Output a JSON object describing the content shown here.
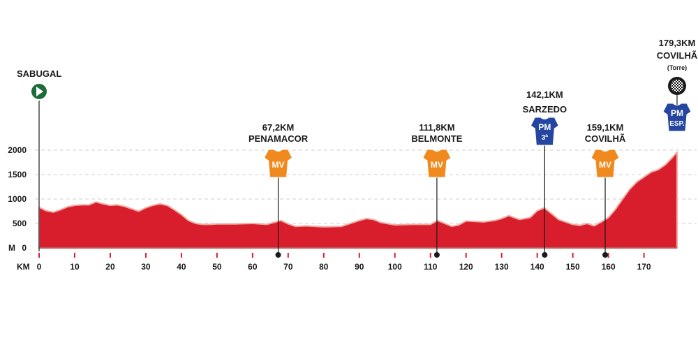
{
  "colors": {
    "profile_fill": "#d81e2c",
    "profile_edge": "#f0a8a0",
    "grid": "#cfcfcf",
    "tick_red": "#d81e2c",
    "start_green": "#1e6b3a",
    "mv_orange": "#f08a1e",
    "pm_blue": "#2546a0"
  },
  "chart_data": {
    "type": "area",
    "ylabel_unit": "M",
    "xlabel_unit": "KM",
    "ylim": [
      0,
      2000
    ],
    "xlim": [
      0,
      179.3
    ],
    "yticks": [
      0,
      500,
      1000,
      1500,
      2000
    ],
    "yticks_labels": [
      "0",
      "500",
      "1000",
      "1500",
      "2000"
    ],
    "xticks": [
      0,
      10,
      20,
      30,
      40,
      50,
      60,
      70,
      80,
      90,
      100,
      110,
      120,
      130,
      140,
      150,
      160,
      170
    ],
    "grid": "horizontal dashed",
    "series": [
      {
        "x": [
          0,
          2,
          4,
          6,
          8,
          10,
          12,
          14,
          16,
          18,
          20,
          22,
          24,
          26,
          28,
          30,
          32,
          34,
          36,
          38,
          40,
          42,
          44,
          46,
          48,
          50,
          55,
          60,
          64,
          66,
          68,
          70,
          72,
          75,
          80,
          85,
          90,
          92,
          94,
          96,
          100,
          105,
          110,
          112,
          114,
          116,
          118,
          120,
          125,
          128,
          130,
          132,
          135,
          138,
          140,
          142,
          144,
          146,
          148,
          150,
          152,
          154,
          156,
          158,
          160,
          162,
          164,
          166,
          168,
          170,
          172,
          174,
          176,
          178,
          179.3
        ],
        "y": [
          830,
          760,
          730,
          780,
          840,
          870,
          880,
          880,
          940,
          900,
          870,
          880,
          850,
          800,
          750,
          820,
          870,
          900,
          870,
          780,
          680,
          560,
          500,
          480,
          480,
          490,
          490,
          500,
          480,
          520,
          560,
          490,
          440,
          450,
          430,
          440,
          560,
          600,
          580,
          520,
          470,
          480,
          480,
          560,
          500,
          440,
          470,
          550,
          530,
          560,
          600,
          660,
          580,
          620,
          760,
          820,
          700,
          580,
          530,
          480,
          460,
          500,
          450,
          530,
          620,
          790,
          1000,
          1200,
          1350,
          1450,
          1550,
          1600,
          1700,
          1850,
          1960
        ]
      }
    ],
    "start": {
      "name": "SABUGAL",
      "km": 0
    },
    "waypoints": [
      {
        "km": 67.2,
        "km_label": "67,2KM",
        "name": "PENAMACOR",
        "badge": "MV",
        "badge_sub": "",
        "kind": "mv"
      },
      {
        "km": 111.8,
        "km_label": "111,8KM",
        "name": "BELMONTE",
        "badge": "MV",
        "badge_sub": "",
        "kind": "mv"
      },
      {
        "km": 142.1,
        "km_label": "142,1KM",
        "name": "SARZEDO",
        "badge": "PM",
        "badge_sub": "3ª",
        "kind": "pm"
      },
      {
        "km": 159.1,
        "km_label": "159,1KM",
        "name": "COVILHÃ",
        "badge": "MV",
        "badge_sub": "",
        "kind": "mv"
      }
    ],
    "finish": {
      "km": 179.3,
      "km_label": "179,3KM",
      "name": "COVILHÃ",
      "note": "(Torre)",
      "badge": "PM",
      "badge_sub": "ESP."
    }
  }
}
